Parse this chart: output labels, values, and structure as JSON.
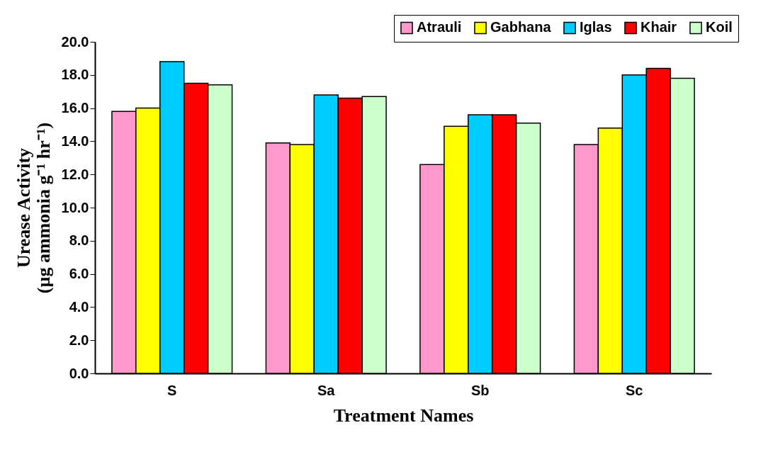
{
  "chart_data": {
    "type": "bar",
    "xlabel": "Treatment Names",
    "ylabel": "Urease Activity\n(µg ammonia g⁻¹ hr⁻¹)",
    "categories": [
      "S",
      "Sa",
      "Sb",
      "Sc"
    ],
    "series": [
      {
        "name": "Atrauli",
        "color": "#ff99cc",
        "values": [
          15.8,
          13.9,
          12.6,
          13.8
        ]
      },
      {
        "name": "Gabhana",
        "color": "#ffff00",
        "values": [
          16.0,
          13.8,
          14.9,
          14.8
        ]
      },
      {
        "name": "Iglas",
        "color": "#00ccff",
        "values": [
          18.8,
          16.8,
          15.6,
          18.0
        ]
      },
      {
        "name": "Khair",
        "color": "#ff0000",
        "values": [
          17.5,
          16.6,
          15.6,
          18.4
        ]
      },
      {
        "name": "Koil",
        "color": "#ccffcc",
        "values": [
          17.4,
          16.7,
          15.1,
          17.8
        ]
      }
    ],
    "ylim": [
      0,
      20
    ],
    "yticks": [
      {
        "value": 0,
        "label": "0.0"
      },
      {
        "value": 2,
        "label": "2.0"
      },
      {
        "value": 4,
        "label": "4.0"
      },
      {
        "value": 6,
        "label": "6.0"
      },
      {
        "value": 8,
        "label": "8.0"
      },
      {
        "value": 10,
        "label": "10.0"
      },
      {
        "value": 12,
        "label": "12.0"
      },
      {
        "value": 14,
        "label": "14.0"
      },
      {
        "value": 16,
        "label": "16.0"
      },
      {
        "value": 18,
        "label": "18.0"
      },
      {
        "value": 20,
        "label": "20.0"
      }
    ],
    "grid": false,
    "legend": "top right"
  }
}
